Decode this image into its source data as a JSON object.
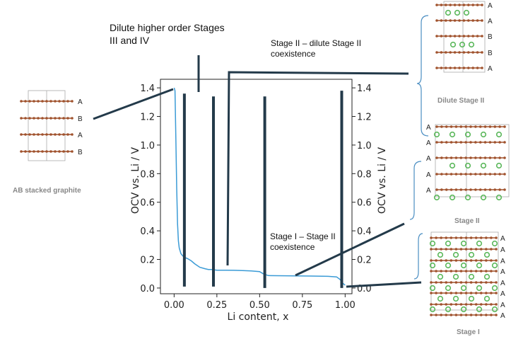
{
  "chart_data": {
    "type": "line",
    "xlabel": "Li content, x",
    "ylabel": "OCV vs. Li / V",
    "ylabel_right": "OCV vs. Li / V",
    "xlim": [
      -0.08,
      1.04
    ],
    "ylim": [
      -0.04,
      1.46
    ],
    "xticks": [
      "0.00",
      "0.25",
      "0.50",
      "0.75",
      "1.00"
    ],
    "yticks": [
      "0.0",
      "0.2",
      "0.4",
      "0.6",
      "0.8",
      "1.0",
      "1.2",
      "1.4"
    ],
    "grid": false,
    "line_color": "#3b9bd6",
    "x": [
      0.0,
      0.005,
      0.01,
      0.015,
      0.02,
      0.025,
      0.03,
      0.04,
      0.05,
      0.06,
      0.07,
      0.08,
      0.1,
      0.12,
      0.15,
      0.18,
      0.2,
      0.22,
      0.25,
      0.3,
      0.35,
      0.4,
      0.45,
      0.5,
      0.52,
      0.55,
      0.6,
      0.7,
      0.8,
      0.9,
      0.95,
      0.97,
      0.985,
      1.0
    ],
    "y": [
      1.4,
      1.38,
      1.05,
      0.7,
      0.45,
      0.33,
      0.28,
      0.24,
      0.225,
      0.215,
      0.21,
      0.205,
      0.19,
      0.17,
      0.145,
      0.135,
      0.13,
      0.13,
      0.125,
      0.125,
      0.124,
      0.122,
      0.12,
      0.115,
      0.1,
      0.087,
      0.086,
      0.085,
      0.084,
      0.082,
      0.078,
      0.06,
      0.035,
      0.02
    ],
    "markers": [
      {
        "x": 0.06,
        "y_top": 1.36,
        "y_bottom": 0.01
      },
      {
        "x": 0.23,
        "y_top": 1.34,
        "y_bottom": 0.01
      },
      {
        "x": 0.53,
        "y_top": 1.34,
        "y_bottom": 0.0
      },
      {
        "x": 0.98,
        "y_top": 1.38,
        "y_bottom": 0.0
      }
    ],
    "annotations": [
      "Dilute higher order Stages III and IV",
      "Stage II – dilute Stage II coexistence",
      "Stage I – Stage II coexistence"
    ]
  },
  "annotations": {
    "dilute_line1": "Dilute higher order Stages",
    "dilute_line2": "III and IV",
    "stage2_line1": "Stage II – dilute Stage II",
    "stage2_line2": "coexistence",
    "stage1_line1": "Stage I – Stage II",
    "stage1_line2": "coexistence"
  },
  "structures": {
    "ab": {
      "caption": "AB stacked graphite",
      "labels": [
        "A",
        "B",
        "A",
        "B"
      ]
    },
    "dilute_stage2": {
      "caption": "Dilute Stage II",
      "labels": [
        "A",
        "A",
        "B",
        "B",
        "A"
      ]
    },
    "stage2": {
      "caption": "Stage II",
      "labels": [
        "A",
        "A",
        "A",
        "A",
        "A"
      ]
    },
    "stage1": {
      "caption": "Stage I",
      "labels": [
        "A",
        "A",
        "A",
        "A",
        "A",
        "A",
        "A",
        "A"
      ]
    }
  },
  "colors": {
    "carbon": "#a0522d",
    "lithium_ring": "#5cb85c",
    "marker": "#233a4a",
    "bracket": "#4a8ec2"
  }
}
